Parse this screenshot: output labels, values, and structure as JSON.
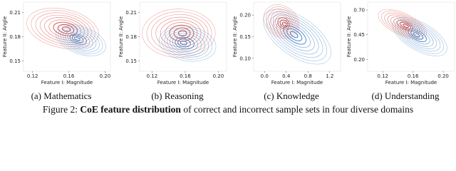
{
  "chart_data": [
    {
      "type": "contour",
      "title": "(a) Mathematics",
      "xlabel": "Feature I: Magnitude",
      "ylabel": "Feature II: Angle",
      "xlim": [
        0.11,
        0.206
      ],
      "ylim": [
        0.137,
        0.223
      ],
      "xticks": [
        0.12,
        0.16,
        {
          "value": 0.2,
          "label": "0.20"
        }
      ],
      "yticks": [
        0.21,
        0.18,
        0.15
      ],
      "colors": [
        "#d9443a",
        "#3d7fc4"
      ]
    },
    {
      "type": "contour",
      "title": "(b) Reasoning",
      "xlabel": "Feature I: Magnitude",
      "ylabel": "Feature II: Angle",
      "xlim": [
        0.105,
        0.21
      ],
      "ylim": [
        0.137,
        0.223
      ],
      "xticks": [
        0.12,
        0.16,
        {
          "value": 0.2,
          "label": "0.20"
        }
      ],
      "yticks": [
        0.21,
        0.18,
        0.15
      ],
      "colors": [
        "#d9443a",
        "#3d7fc4"
      ]
    },
    {
      "type": "contour",
      "title": "(c) Knowledge",
      "xlabel": "Feature I: Magnitude",
      "ylabel": "Feature II: Angle",
      "xlim": [
        -0.2,
        1.4
      ],
      "ylim": [
        0.07,
        0.23
      ],
      "xticks": [
        {
          "value": 0,
          "label": "0.0"
        },
        0.4,
        0.8,
        1.2
      ],
      "yticks": [
        {
          "value": 0.2,
          "label": "0.20"
        },
        0.15,
        {
          "value": 0.1,
          "label": "0.10"
        }
      ],
      "colors": [
        "#d9443a",
        "#3d7fc4"
      ]
    },
    {
      "type": "contour",
      "title": "(d) Understanding",
      "xlabel": "Feature I: Magnitude",
      "ylabel": "Feature II: Angle",
      "xlim": [
        0.1,
        0.215
      ],
      "ylim": [
        0.08,
        0.78
      ],
      "xticks": [
        0.12,
        0.16,
        {
          "value": 0.2,
          "label": "0.20"
        }
      ],
      "yticks": [
        {
          "value": 0.7,
          "label": "0.70"
        },
        0.45,
        {
          "value": 0.2,
          "label": "0.20"
        }
      ],
      "colors": [
        "#d9443a",
        "#3d7fc4"
      ]
    }
  ],
  "figure_caption": {
    "label": "Figure 2: ",
    "bold": "CoE feature distribution",
    "rest": " of correct and incorrect sample sets in four diverse domains"
  }
}
